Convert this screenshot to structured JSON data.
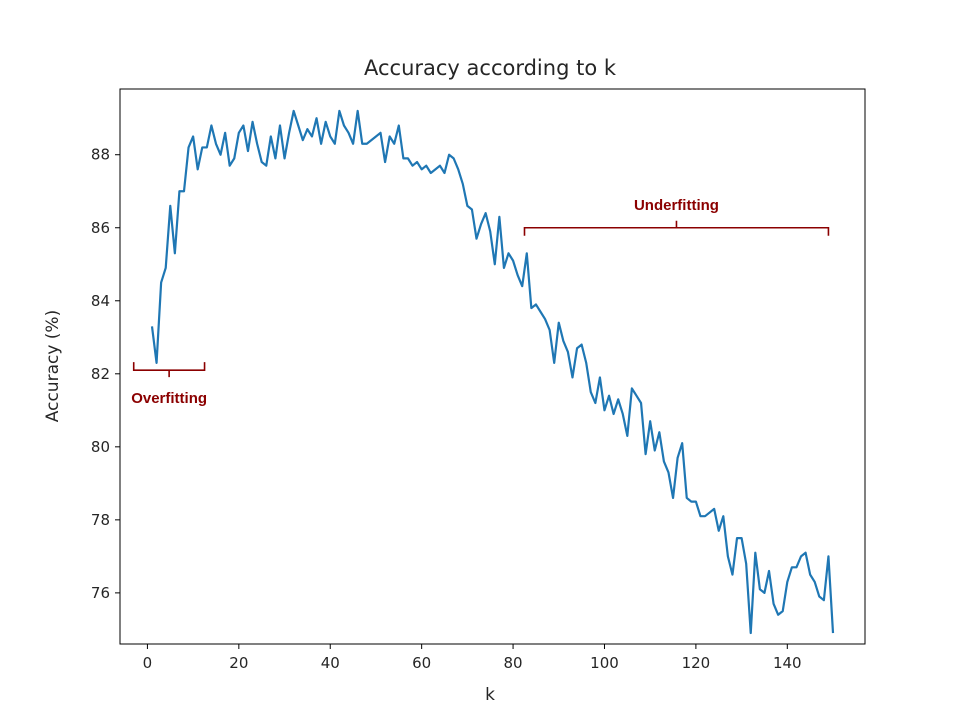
{
  "chart_data": {
    "type": "line",
    "title": "Accuracy according to k",
    "xlabel": "k",
    "ylabel": "Accuracy (%)",
    "xlim": [
      -6,
      157
    ],
    "ylim": [
      74.6,
      89.8
    ],
    "xticks": [
      0,
      20,
      40,
      60,
      80,
      100,
      120,
      140
    ],
    "yticks": [
      76,
      78,
      80,
      82,
      84,
      86,
      88
    ],
    "xtick_labels": [
      "0",
      "20",
      "40",
      "60",
      "80",
      "100",
      "120",
      "140"
    ],
    "ytick_labels": [
      "76",
      "78",
      "80",
      "82",
      "84",
      "86",
      "88"
    ],
    "grid": false,
    "series": [
      {
        "color": "#1f77b4",
        "x": [
          1,
          2,
          3,
          4,
          5,
          6,
          7,
          8,
          9,
          10,
          11,
          12,
          13,
          14,
          15,
          16,
          17,
          18,
          19,
          20,
          21,
          22,
          23,
          24,
          25,
          26,
          27,
          28,
          29,
          30,
          31,
          32,
          33,
          34,
          35,
          36,
          37,
          38,
          39,
          40,
          41,
          42,
          43,
          44,
          45,
          46,
          47,
          48,
          49,
          50,
          51,
          52,
          53,
          54,
          55,
          56,
          57,
          58,
          59,
          60,
          61,
          62,
          63,
          64,
          65,
          66,
          67,
          68,
          69,
          70,
          71,
          72,
          73,
          74,
          75,
          76,
          77,
          78,
          79,
          80,
          81,
          82,
          83,
          84,
          85,
          86,
          87,
          88,
          89,
          90,
          91,
          92,
          93,
          94,
          95,
          96,
          97,
          98,
          99,
          100,
          101,
          102,
          103,
          104,
          105,
          106,
          107,
          108,
          109,
          110,
          111,
          112,
          113,
          114,
          115,
          116,
          117,
          118,
          119,
          120,
          121,
          122,
          123,
          124,
          125,
          126,
          127,
          128,
          129,
          130,
          131,
          132,
          133,
          134,
          135,
          136,
          137,
          138,
          139,
          140,
          141,
          142,
          143,
          144,
          145,
          146,
          147,
          148,
          149,
          150
        ],
        "y": [
          83.3,
          82.3,
          84.5,
          84.9,
          86.6,
          85.3,
          87.0,
          87.0,
          88.2,
          88.5,
          87.6,
          88.2,
          88.2,
          88.8,
          88.3,
          88.0,
          88.6,
          87.7,
          87.9,
          88.6,
          88.8,
          88.1,
          88.9,
          88.3,
          87.8,
          87.7,
          88.5,
          87.9,
          88.8,
          87.9,
          88.6,
          89.2,
          88.8,
          88.4,
          88.7,
          88.5,
          89.0,
          88.3,
          88.9,
          88.5,
          88.3,
          89.2,
          88.8,
          88.6,
          88.3,
          89.2,
          88.3,
          88.3,
          88.4,
          88.5,
          88.6,
          87.8,
          88.5,
          88.3,
          88.8,
          87.9,
          87.9,
          87.7,
          87.8,
          87.6,
          87.7,
          87.5,
          87.6,
          87.7,
          87.5,
          88.0,
          87.9,
          87.6,
          87.2,
          86.6,
          86.5,
          85.7,
          86.1,
          86.4,
          85.9,
          85.0,
          86.3,
          84.9,
          85.3,
          85.1,
          84.7,
          84.4,
          85.3,
          83.8,
          83.9,
          83.7,
          83.5,
          83.2,
          82.3,
          83.4,
          82.9,
          82.6,
          81.9,
          82.7,
          82.8,
          82.3,
          81.5,
          81.2,
          81.9,
          81.0,
          81.4,
          80.9,
          81.3,
          80.9,
          80.3,
          81.6,
          81.4,
          81.2,
          79.8,
          80.7,
          79.9,
          80.4,
          79.6,
          79.3,
          78.6,
          79.7,
          80.1,
          78.6,
          78.5,
          78.5,
          78.1,
          78.1,
          78.2,
          78.3,
          77.7,
          78.1,
          77.0,
          76.5,
          77.5,
          77.5,
          76.8,
          74.9,
          77.1,
          76.1,
          76.0,
          76.6,
          75.7,
          75.4,
          75.5,
          76.3,
          76.7,
          76.7,
          77.0,
          77.1,
          76.5,
          76.3,
          75.9,
          75.8,
          77.0,
          74.9
        ]
      }
    ],
    "annotations": [
      {
        "text": "Overfitting",
        "color": "#8b0000",
        "bracket_x": [
          -3,
          12.5
        ],
        "bracket_y": 82.1,
        "bracket_side": "below"
      },
      {
        "text": "Underfitting",
        "color": "#8b0000",
        "bracket_x": [
          82.5,
          149
        ],
        "bracket_y": 86.0,
        "bracket_side": "above"
      }
    ]
  }
}
